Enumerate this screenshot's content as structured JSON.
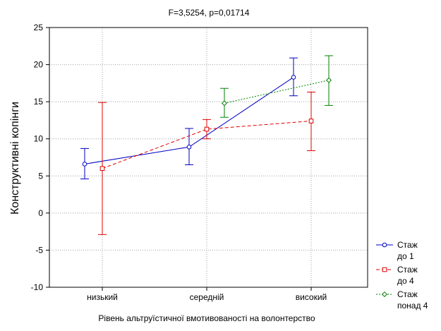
{
  "chart_data": {
    "type": "line",
    "title": "F=3,5254, p=0,01714",
    "xlabel": "Рівень альтруїстичної вмотивованості на волонтерство",
    "ylabel": "Конструктивні копінги",
    "categories": [
      "низький",
      "середній",
      "високий"
    ],
    "ylim": [
      -10,
      25
    ],
    "yticks": [
      -10,
      -5,
      0,
      5,
      10,
      15,
      20,
      25
    ],
    "grid": true,
    "legend_position": "bottom-right",
    "series": [
      {
        "name": "Стаж до 1",
        "legend_lines": [
          "Стаж",
          "до 1"
        ],
        "color": "#0000c0",
        "marker": "circle",
        "linestyle": "solid",
        "values": [
          6.6,
          8.9,
          18.3
        ],
        "err_low": [
          4.6,
          6.5,
          15.8
        ],
        "err_high": [
          8.7,
          11.4,
          20.9
        ]
      },
      {
        "name": "Стаж до 4",
        "legend_lines": [
          "Стаж",
          "до 4"
        ],
        "color": "#e00000",
        "marker": "square",
        "linestyle": "dashed",
        "values": [
          6.0,
          11.3,
          12.4
        ],
        "err_low": [
          -2.9,
          10.0,
          8.4
        ],
        "err_high": [
          14.9,
          12.6,
          16.3
        ]
      },
      {
        "name": "Стаж понад 4",
        "legend_lines": [
          "Стаж",
          "понад 4"
        ],
        "color": "#008000",
        "marker": "diamond",
        "linestyle": "dotted",
        "values": [
          null,
          14.8,
          17.9
        ],
        "err_low": [
          null,
          12.9,
          14.5
        ],
        "err_high": [
          null,
          16.8,
          21.2
        ]
      }
    ]
  }
}
